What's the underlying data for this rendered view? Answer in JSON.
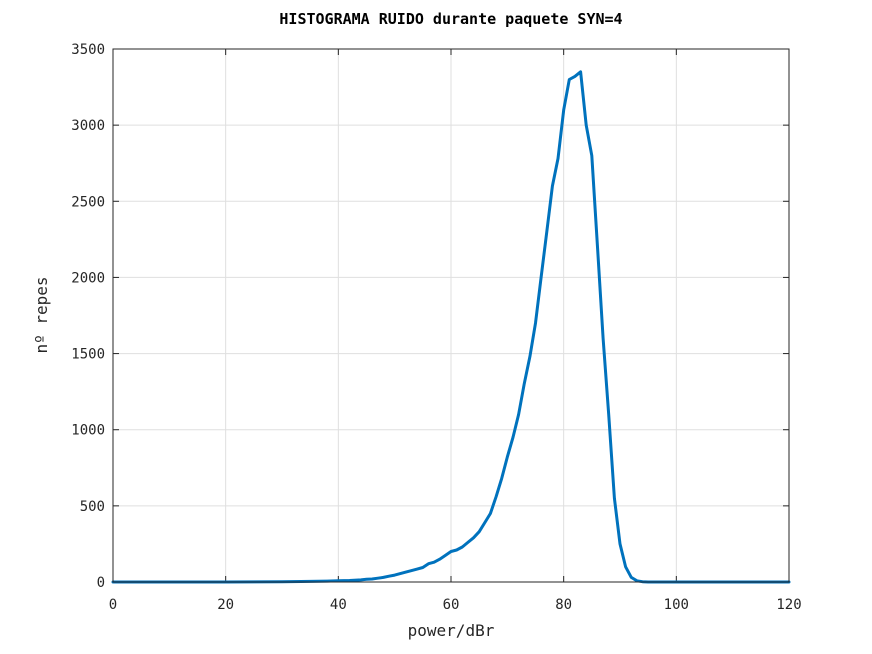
{
  "chart_data": {
    "type": "line",
    "title": "HISTOGRAMA RUIDO durante paquete SYN=4",
    "xlabel": "power/dBr",
    "ylabel": "nº repes",
    "xlim": [
      0,
      120
    ],
    "ylim": [
      0,
      3500
    ],
    "xticks": [
      0,
      20,
      40,
      60,
      80,
      100,
      120
    ],
    "yticks": [
      0,
      500,
      1000,
      1500,
      2000,
      2500,
      3000,
      3500
    ],
    "grid": true,
    "line_color": "#0072BD",
    "series": [
      {
        "x": [
          0,
          10,
          20,
          30,
          35,
          38,
          40,
          42,
          44,
          45,
          46,
          47,
          48,
          49,
          50,
          51,
          52,
          53,
          54,
          55,
          56,
          57,
          58,
          59,
          60,
          61,
          62,
          63,
          64,
          65,
          66,
          67,
          68,
          69,
          70,
          71,
          72,
          73,
          74,
          75,
          76,
          77,
          78,
          79,
          80,
          81,
          82,
          83,
          84,
          85,
          86,
          87,
          88,
          89,
          90,
          91,
          92,
          93,
          94,
          95,
          100,
          110,
          120
        ],
        "y": [
          0,
          0,
          0,
          2,
          4,
          6,
          8,
          10,
          14,
          18,
          20,
          25,
          30,
          38,
          45,
          55,
          65,
          75,
          85,
          95,
          120,
          130,
          150,
          175,
          200,
          210,
          230,
          260,
          290,
          330,
          390,
          450,
          560,
          680,
          820,
          950,
          1100,
          1300,
          1480,
          1700,
          2000,
          2300,
          2600,
          2780,
          3100,
          3300,
          3320,
          3350,
          3000,
          2800,
          2200,
          1600,
          1100,
          550,
          250,
          100,
          30,
          8,
          2,
          0,
          0,
          0,
          0
        ]
      }
    ]
  }
}
